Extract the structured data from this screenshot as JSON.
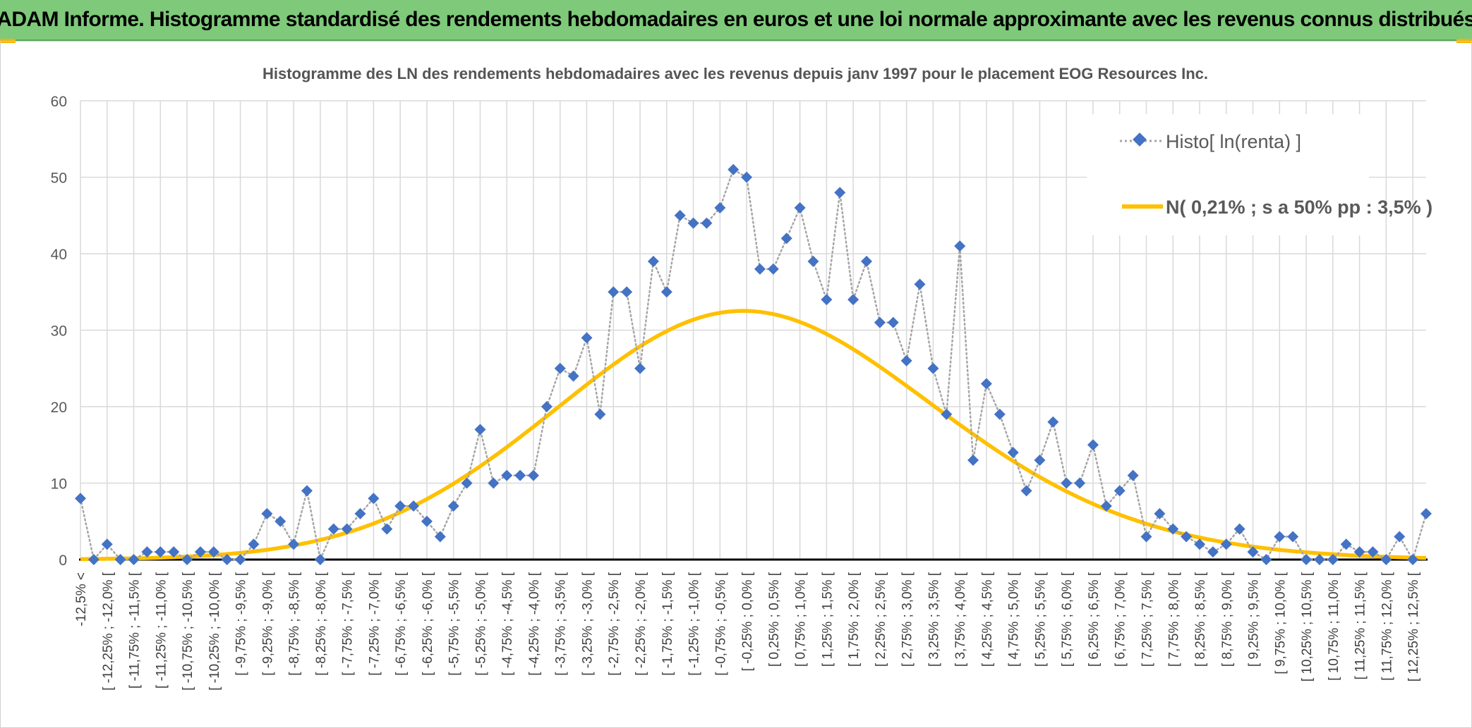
{
  "banner": {
    "title": "ADAM Informe. Histogramme standardisé des rendements hebdomadaires en euros et une loi normale approximante avec les revenus connus distribués"
  },
  "colors": {
    "banner_bg": "#7ec97a",
    "series_marker": "#4472c4",
    "series_line": "#a6a6a6",
    "normal_curve": "#ffc000",
    "grid": "#d9d9d9",
    "axis": "#000000"
  },
  "chart_data": {
    "type": "line",
    "title": "Histogramme des LN des rendements hebdomadaires avec les revenus depuis janv 1997 pour le placement EOG Resources Inc.",
    "xlabel": "",
    "ylabel": "",
    "ylim": [
      0,
      60
    ],
    "yticks": [
      0,
      10,
      20,
      30,
      40,
      50,
      60
    ],
    "grid": true,
    "legend_position": "top-right",
    "categories": [
      "-12,5% <",
      "[ -12,5% ; -12,25% [",
      "[ -12,25% ; -12,0% [",
      "[ -12,0% ; -11,75% [",
      "[ -11,75% ; -11,5% [",
      "[ -11,5% ; -11,25% [",
      "[ -11,25% ; -11,0% [",
      "[ -11,0% ; -10,75% [",
      "[ -10,75% ; -10,5% [",
      "[ -10,5% ; -10,25% [",
      "[ -10,25% ; -10,0% [",
      "[ -10,0% ; -9,75% [",
      "[ -9,75% ; -9,5% [",
      "[ -9,5% ; -9,25% [",
      "[ -9,25% ; -9,0% [",
      "[ -9,0% ; -8,75% [",
      "[ -8,75% ; -8,5% [",
      "[ -8,5% ; -8,25% [",
      "[ -8,25% ; -8,0% [",
      "[ -8,0% ; -7,75% [",
      "[ -7,75% ; -7,5% [",
      "[ -7,5% ; -7,25% [",
      "[ -7,25% ; -7,0% [",
      "[ -7,0% ; -6,75% [",
      "[ -6,75% ; -6,5% [",
      "[ -6,5% ; -6,25% [",
      "[ -6,25% ; -6,0% [",
      "[ -6,0% ; -5,75% [",
      "[ -5,75% ; -5,5% [",
      "[ -5,5% ; -5,25% [",
      "[ -5,25% ; -5,0% [",
      "[ -5,0% ; -4,75% [",
      "[ -4,75% ; -4,5% [",
      "[ -4,5% ; -4,25% [",
      "[ -4,25% ; -4,0% [",
      "[ -4,0% ; -3,75% [",
      "[ -3,75% ; -3,5% [",
      "[ -3,5% ; -3,25% [",
      "[ -3,25% ; -3,0% [",
      "[ -3,0% ; -2,75% [",
      "[ -2,75% ; -2,5% [",
      "[ -2,5% ; -2,25% [",
      "[ -2,25% ; -2,0% [",
      "[ -2,0% ; -1,75% [",
      "[ -1,75% ; -1,5% [",
      "[ -1,5% ; -1,25% [",
      "[ -1,25% ; -1,0% [",
      "[ -1,0% ; -0,75% [",
      "[ -0,75% ; -0,5% [",
      "[ -0,5% ; -0,25% [",
      "[ -0,25% ; 0,0% [",
      "[ 0,0% ; 0,25% [",
      "[ 0,25% ; 0,5% [",
      "[ 0,5% ; 0,75% [",
      "[ 0,75% ; 1,0% [",
      "[ 1,0% ; 1,25% [",
      "[ 1,25% ; 1,5% [",
      "[ 1,5% ; 1,75% [",
      "[ 1,75% ; 2,0% [",
      "[ 2,0% ; 2,25% [",
      "[ 2,25% ; 2,5% [",
      "[ 2,5% ; 2,75% [",
      "[ 2,75% ; 3,0% [",
      "[ 3,0% ; 3,25% [",
      "[ 3,25% ; 3,5% [",
      "[ 3,5% ; 3,75% [",
      "[ 3,75% ; 4,0% [",
      "[ 4,0% ; 4,25% [",
      "[ 4,25% ; 4,5% [",
      "[ 4,5% ; 4,75% [",
      "[ 4,75% ; 5,0% [",
      "[ 5,0% ; 5,25% [",
      "[ 5,25% ; 5,5% [",
      "[ 5,5% ; 5,75% [",
      "[ 5,75% ; 6,0% [",
      "[ 6,0% ; 6,25% [",
      "[ 6,25% ; 6,5% [",
      "[ 6,5% ; 6,75% [",
      "[ 6,75% ; 7,0% [",
      "[ 7,0% ; 7,25% [",
      "[ 7,25% ; 7,5% [",
      "[ 7,5% ; 7,75% [",
      "[ 7,75% ; 8,0% [",
      "[ 8,0% ; 8,25% [",
      "[ 8,25% ; 8,5% [",
      "[ 8,5% ; 8,75% [",
      "[ 8,75% ; 9,0% [",
      "[ 9,0% ; 9,25% [",
      "[ 9,25% ; 9,5% [",
      "[ 9,5% ; 9,75% [",
      "[ 9,75% ; 10,0% [",
      "[ 10,0% ; 10,25% [",
      "[ 10,25% ; 10,5% [",
      "[ 10,5% ; 10,75% [",
      "[ 10,75% ; 11,0% [",
      "[ 11,0% ; 11,25% [",
      "[ 11,25% ; 11,5% [",
      "[ 11,5% ; 11,75% [",
      "[ 11,75% ; 12,0% [",
      "[ 12,0% ; 12,25% [",
      "[ 12,25% ; 12,5% [",
      "[ 12,5% ; 12,75% ["
    ],
    "series": [
      {
        "name": "Histo[ ln(renta) ]",
        "style": "dotted-line-diamond",
        "values": [
          8,
          0,
          2,
          0,
          0,
          1,
          1,
          1,
          0,
          1,
          1,
          0,
          0,
          2,
          6,
          5,
          2,
          9,
          0,
          4,
          4,
          6,
          8,
          4,
          7,
          7,
          5,
          3,
          7,
          10,
          17,
          10,
          11,
          11,
          11,
          20,
          25,
          24,
          29,
          19,
          35,
          35,
          25,
          39,
          35,
          45,
          44,
          44,
          46,
          51,
          50,
          38,
          38,
          42,
          46,
          39,
          34,
          48,
          34,
          39,
          31,
          31,
          26,
          36,
          25,
          19,
          41,
          13,
          23,
          19,
          14,
          9,
          13,
          18,
          10,
          10,
          15,
          7,
          9,
          11,
          3,
          6,
          4,
          3,
          2,
          1,
          2,
          4,
          1,
          0,
          3,
          3,
          0,
          0,
          0,
          2,
          1,
          1,
          0,
          3,
          0,
          6
        ]
      },
      {
        "name": "N( 0,21% ; s a 50% pp : 3,5% )",
        "style": "smooth-line",
        "values": [
          0.06,
          0.08,
          0.1,
          0.13,
          0.16,
          0.2,
          0.25,
          0.31,
          0.39,
          0.48,
          0.59,
          0.72,
          0.88,
          1.06,
          1.28,
          1.54,
          1.84,
          2.18,
          2.57,
          3.02,
          3.52,
          4.08,
          4.71,
          5.41,
          6.17,
          7.0,
          7.91,
          8.88,
          9.92,
          11.03,
          12.2,
          13.43,
          14.7,
          16.02,
          17.37,
          18.74,
          20.13,
          21.51,
          22.88,
          24.21,
          25.5,
          26.73,
          27.88,
          28.93,
          29.87,
          30.69,
          31.37,
          31.9,
          32.27,
          32.48,
          32.52,
          32.39,
          32.1,
          31.66,
          31.07,
          30.35,
          29.5,
          28.55,
          27.51,
          26.39,
          25.21,
          23.98,
          22.72,
          21.45,
          20.16,
          18.89,
          17.63,
          16.39,
          15.18,
          14.01,
          12.89,
          11.81,
          10.79,
          9.83,
          8.92,
          8.07,
          7.28,
          6.55,
          5.87,
          5.25,
          4.68,
          4.16,
          3.69,
          3.26,
          2.88,
          2.53,
          2.22,
          1.94,
          1.69,
          1.47,
          1.27,
          1.1,
          0.95,
          0.81,
          0.7,
          0.59,
          0.5,
          0.43,
          0.36,
          0.3,
          0.25,
          0.21
        ]
      }
    ]
  }
}
